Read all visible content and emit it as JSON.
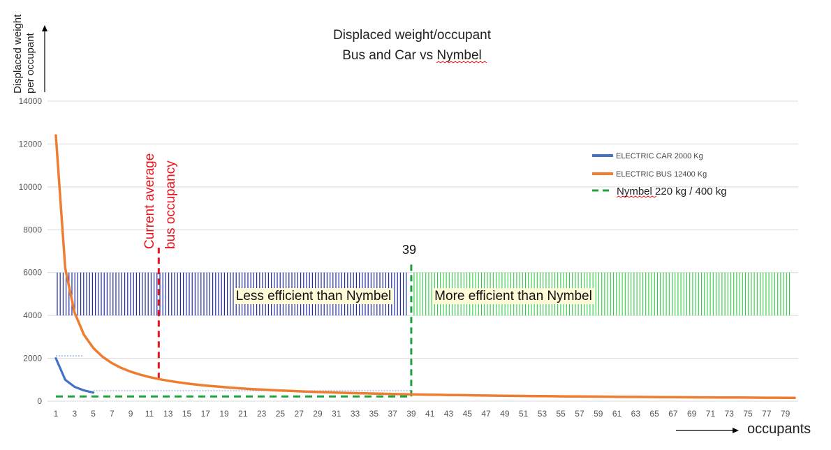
{
  "chart_data": {
    "type": "line",
    "title_lines": [
      "Displaced weight/occupant",
      "Bus and Car vs Nymbel"
    ],
    "ylabel_lines": [
      "Displaced weight",
      "per occupant"
    ],
    "xlabel": "occupants",
    "ylim": [
      0,
      14000
    ],
    "yticks": [
      0,
      2000,
      4000,
      6000,
      8000,
      10000,
      12000,
      14000
    ],
    "xlim": [
      1,
      80
    ],
    "xticks": [
      1,
      3,
      5,
      7,
      9,
      11,
      13,
      15,
      17,
      19,
      21,
      23,
      25,
      27,
      29,
      31,
      33,
      35,
      37,
      39,
      41,
      43,
      45,
      47,
      49,
      51,
      53,
      55,
      57,
      59,
      61,
      63,
      65,
      67,
      69,
      71,
      73,
      75,
      77,
      79
    ],
    "grid": true,
    "legend_position": "right",
    "series": [
      {
        "name": "ELECTRIC CAR 2000 Kg",
        "color": "#4472c4",
        "kind": "curve",
        "x": [
          1,
          2,
          3,
          4,
          5
        ],
        "y": [
          2000,
          1000,
          667,
          500,
          400
        ]
      },
      {
        "name": "ELECTRIC BUS 12400 Kg",
        "color": "#ed7d31",
        "kind": "curve",
        "x": [
          1,
          2,
          3,
          4,
          5,
          6,
          7,
          8,
          9,
          10,
          11,
          12,
          13,
          14,
          15,
          16,
          17,
          18,
          19,
          20,
          21,
          22,
          23,
          24,
          25,
          26,
          27,
          28,
          29,
          30,
          31,
          32,
          33,
          34,
          35,
          36,
          37,
          38,
          39,
          40,
          41,
          42,
          43,
          44,
          45,
          46,
          47,
          48,
          49,
          50,
          51,
          52,
          53,
          54,
          55,
          56,
          57,
          58,
          59,
          60,
          61,
          62,
          63,
          64,
          65,
          66,
          67,
          68,
          69,
          70,
          71,
          72,
          73,
          74,
          75,
          76,
          77,
          78,
          79,
          80
        ],
        "y": [
          12400,
          6200,
          4133,
          3100,
          2480,
          2067,
          1771,
          1550,
          1378,
          1240,
          1127,
          1033,
          954,
          886,
          827,
          775,
          729,
          689,
          653,
          620,
          590,
          564,
          539,
          517,
          496,
          477,
          459,
          443,
          428,
          413,
          400,
          388,
          376,
          365,
          354,
          344,
          335,
          326,
          318,
          310,
          302,
          295,
          288,
          282,
          276,
          270,
          264,
          258,
          253,
          248,
          243,
          238,
          234,
          230,
          225,
          221,
          218,
          214,
          210,
          207,
          203,
          200,
          197,
          194,
          191,
          188,
          185,
          182,
          180,
          177,
          175,
          172,
          170,
          168,
          165,
          163,
          161,
          159,
          157,
          155
        ]
      },
      {
        "name": "Nymbel 220 kg / 400 kg",
        "color": "#1fa23c",
        "kind": "dashed",
        "x": [
          1,
          39
        ],
        "y": [
          220,
          220
        ]
      }
    ],
    "annotations": {
      "bus_occupancy_label": [
        "Current average",
        "bus occupancy"
      ],
      "bus_occupancy_x": 12,
      "threshold_label": "39",
      "threshold_x": 39,
      "band_ylim": [
        4000,
        6000
      ],
      "less_efficient": "Less efficient than Nymbel",
      "more_efficient": "More efficient than Nymbel",
      "less_color": "#1f2a9c",
      "more_color": "#2ecc40",
      "highlight_color": "#fffbd6",
      "red_color": "#e8141c",
      "green_dash_color": "#1fa23c"
    }
  }
}
